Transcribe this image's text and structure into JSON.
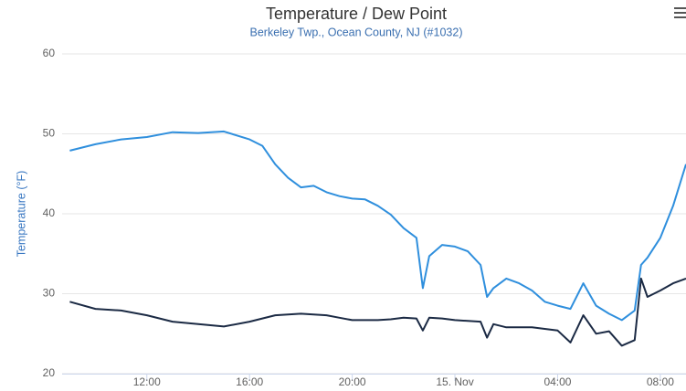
{
  "chart_data": {
    "type": "line",
    "title": "Temperature / Dew Point",
    "subtitle": "Berkeley Twp., Ocean County, NJ (#1032)",
    "y_label": "Temperature (°F)",
    "x": [
      9,
      10,
      11,
      12,
      13,
      14,
      15,
      16,
      16.5,
      17,
      17.5,
      18,
      18.5,
      19,
      19.5,
      20,
      20.5,
      21,
      21.5,
      22,
      22.5,
      22.75,
      23,
      23.5,
      24,
      24.5,
      25,
      25.25,
      25.5,
      26,
      26.5,
      27,
      27.5,
      28,
      28.5,
      29,
      29.5,
      30,
      30.5,
      31,
      31.25,
      31.5,
      32,
      32.5,
      33
    ],
    "series": [
      {
        "color": "#2f8fdd",
        "values": [
          47.9,
          48.7,
          49.3,
          49.6,
          50.2,
          50.1,
          50.3,
          49.3,
          48.5,
          46.2,
          44.5,
          43.3,
          43.5,
          42.7,
          42.2,
          41.9,
          41.8,
          41.0,
          39.9,
          38.2,
          37.0,
          30.7,
          34.7,
          36.1,
          35.9,
          35.3,
          33.6,
          29.6,
          30.7,
          31.9,
          31.3,
          30.4,
          29.0,
          28.5,
          28.1,
          31.3,
          28.5,
          27.5,
          26.7,
          27.9,
          33.6,
          34.5,
          37.0,
          41.0,
          46.2
        ]
      },
      {
        "color": "#1b2a44",
        "values": [
          29.0,
          28.1,
          27.9,
          27.3,
          26.5,
          26.2,
          25.9,
          26.5,
          26.9,
          27.3,
          27.4,
          27.5,
          27.4,
          27.3,
          27.0,
          26.7,
          26.7,
          26.7,
          26.8,
          27.0,
          26.9,
          25.4,
          27.0,
          26.9,
          26.7,
          26.6,
          26.5,
          24.5,
          26.2,
          25.8,
          25.8,
          25.8,
          25.6,
          25.4,
          23.9,
          27.3,
          25.0,
          25.3,
          23.5,
          24.2,
          31.9,
          29.6,
          30.4,
          31.3,
          31.9
        ]
      }
    ],
    "xlim": [
      8.7,
      33
    ],
    "xticks": [
      {
        "value": 12,
        "label": "12:00"
      },
      {
        "value": 16,
        "label": "16:00"
      },
      {
        "value": 20,
        "label": "20:00"
      },
      {
        "value": 24,
        "label": "15. Nov"
      },
      {
        "value": 28,
        "label": "04:00"
      },
      {
        "value": 32,
        "label": "08:00"
      }
    ],
    "ylim": [
      20,
      60
    ],
    "yticks": [
      20,
      30,
      40,
      50,
      60
    ],
    "grid": true
  }
}
